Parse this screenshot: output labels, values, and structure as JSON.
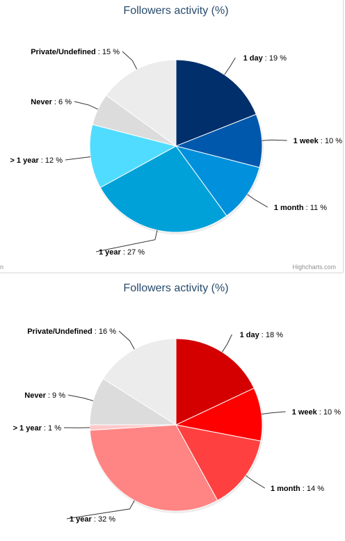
{
  "credits": "Highcharts.com",
  "chart_data": [
    {
      "type": "pie",
      "title": "Followers activity (%)",
      "slices": [
        {
          "name": "1 day",
          "value": 19,
          "color": "#002f6b"
        },
        {
          "name": "1 week",
          "value": 10,
          "color": "#0058ac"
        },
        {
          "name": "1 month",
          "value": 11,
          "color": "#0090dc"
        },
        {
          "name": "1 year",
          "value": 27,
          "color": "#00a1d9"
        },
        {
          "name": "> 1 year",
          "value": 12,
          "color": "#50dcff"
        },
        {
          "name": "Never",
          "value": 6,
          "color": "#dcdcdc"
        },
        {
          "name": "Private/Undefined",
          "value": 15,
          "color": "#ececec"
        }
      ]
    },
    {
      "type": "pie",
      "title": "Followers activity (%)",
      "slices": [
        {
          "name": "1 day",
          "value": 18,
          "color": "#d40000"
        },
        {
          "name": "1 week",
          "value": 10,
          "color": "#ff0000"
        },
        {
          "name": "1 month",
          "value": 14,
          "color": "#ff4040"
        },
        {
          "name": "1 year",
          "value": 32,
          "color": "#ff8585"
        },
        {
          "name": "> 1 year",
          "value": 1,
          "color": "#ffc8c8"
        },
        {
          "name": "Never",
          "value": 9,
          "color": "#dcdcdc"
        },
        {
          "name": "Private/Undefined",
          "value": 16,
          "color": "#ececec"
        }
      ]
    }
  ]
}
